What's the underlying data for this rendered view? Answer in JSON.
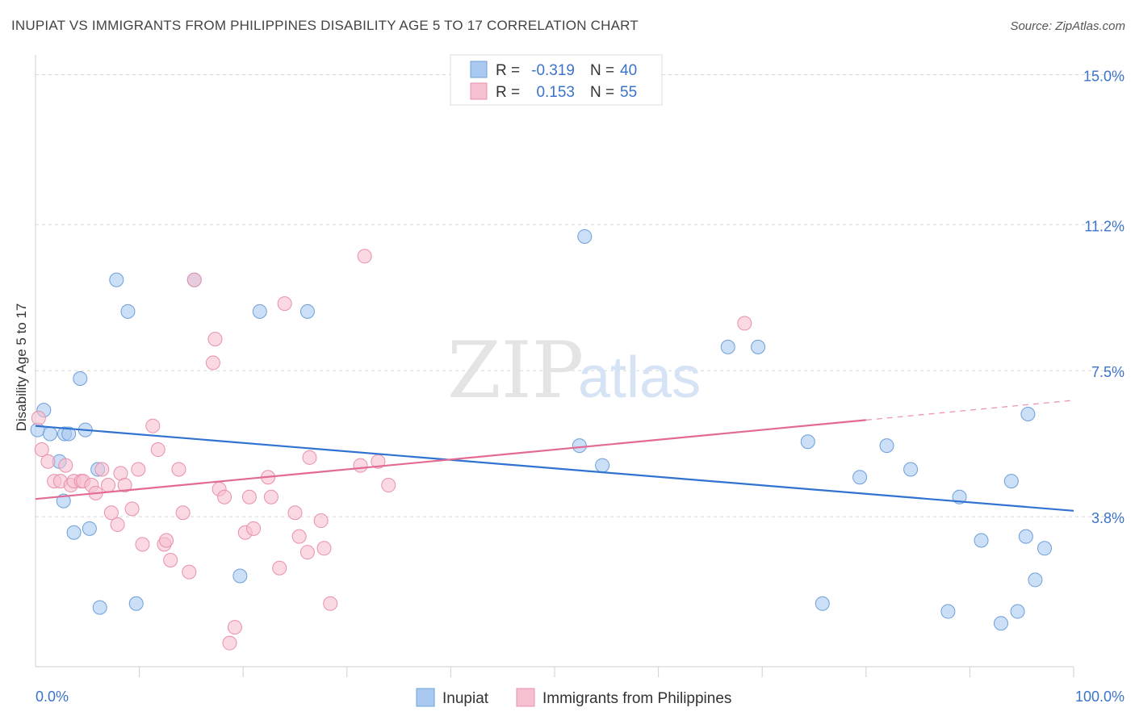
{
  "title": "INUPIAT VS IMMIGRANTS FROM PHILIPPINES DISABILITY AGE 5 TO 17 CORRELATION CHART",
  "source": "Source: ZipAtlas.com",
  "watermark": {
    "zip": "ZIP",
    "atlas": "atlas"
  },
  "legend_stats": [
    {
      "r_label": "R =",
      "r_value": "-0.319",
      "n_label": "N =",
      "n_value": "40",
      "color": "#a9c9f0",
      "stroke": "#6e9fd8"
    },
    {
      "r_label": "R =",
      "r_value": "0.153",
      "n_label": "N =",
      "n_value": "55",
      "color": "#f7c0d0",
      "stroke": "#e890aa"
    }
  ],
  "chart_data": {
    "type": "scatter",
    "ylabel": "Disability Age 5 to 17",
    "xlim": [
      0,
      100
    ],
    "ylim": [
      0,
      15.5
    ],
    "x_tick_labels": [
      "0.0%",
      "100.0%"
    ],
    "y_ticks": [
      3.8,
      7.5,
      11.2,
      15.0
    ],
    "y_tick_labels": [
      "3.8%",
      "7.5%",
      "11.2%",
      "15.0%"
    ],
    "grid": true,
    "legend": [
      "Inupiat",
      "Immigrants from Philippines"
    ],
    "series": [
      {
        "name": "Inupiat",
        "color": "#a9c9f0",
        "stroke": "#6e9fd8",
        "line_color": "#2f72d0",
        "trend": {
          "x": [
            0,
            100
          ],
          "y": [
            6.1,
            3.95
          ]
        },
        "points": [
          [
            0.2,
            6.0
          ],
          [
            0.8,
            6.5
          ],
          [
            1.4,
            5.9
          ],
          [
            2.3,
            5.2
          ],
          [
            2.7,
            4.2
          ],
          [
            2.8,
            5.9
          ],
          [
            3.2,
            5.9
          ],
          [
            3.7,
            3.4
          ],
          [
            4.3,
            7.3
          ],
          [
            4.8,
            6.0
          ],
          [
            5.2,
            3.5
          ],
          [
            6.0,
            5.0
          ],
          [
            6.2,
            1.5
          ],
          [
            7.8,
            9.8
          ],
          [
            8.9,
            9.0
          ],
          [
            9.7,
            1.6
          ],
          [
            15.3,
            9.8
          ],
          [
            21.6,
            9.0
          ],
          [
            19.7,
            2.3
          ],
          [
            26.2,
            9.0
          ],
          [
            52.4,
            5.6
          ],
          [
            54.6,
            5.1
          ],
          [
            52.9,
            10.9
          ],
          [
            66.7,
            8.1
          ],
          [
            69.6,
            8.1
          ],
          [
            74.4,
            5.7
          ],
          [
            75.8,
            1.6
          ],
          [
            79.4,
            4.8
          ],
          [
            82.0,
            5.6
          ],
          [
            84.3,
            5.0
          ],
          [
            87.9,
            1.4
          ],
          [
            89.0,
            4.3
          ],
          [
            91.1,
            3.2
          ],
          [
            93.0,
            1.1
          ],
          [
            94.0,
            4.7
          ],
          [
            94.6,
            1.4
          ],
          [
            95.4,
            3.3
          ],
          [
            95.6,
            6.4
          ],
          [
            96.3,
            2.2
          ],
          [
            97.2,
            3.0
          ]
        ]
      },
      {
        "name": "Immigrants from Philippines",
        "color": "#f7c0d0",
        "stroke": "#e890aa",
        "line_color": "#e26a93",
        "trend": {
          "x": [
            0,
            80
          ],
          "y": [
            4.25,
            6.25
          ]
        },
        "trend_dashed": {
          "x": [
            80,
            100
          ],
          "y": [
            6.25,
            6.75
          ]
        },
        "points": [
          [
            0.3,
            6.3
          ],
          [
            0.6,
            5.5
          ],
          [
            1.2,
            5.2
          ],
          [
            1.8,
            4.7
          ],
          [
            2.4,
            4.7
          ],
          [
            2.9,
            5.1
          ],
          [
            3.4,
            4.6
          ],
          [
            3.7,
            4.7
          ],
          [
            4.4,
            4.7
          ],
          [
            4.6,
            4.7
          ],
          [
            5.4,
            4.6
          ],
          [
            5.8,
            4.4
          ],
          [
            6.4,
            5.0
          ],
          [
            7.0,
            4.6
          ],
          [
            7.3,
            3.9
          ],
          [
            7.9,
            3.6
          ],
          [
            8.2,
            4.9
          ],
          [
            8.6,
            4.6
          ],
          [
            9.3,
            4.0
          ],
          [
            9.9,
            5.0
          ],
          [
            10.3,
            3.1
          ],
          [
            11.3,
            6.1
          ],
          [
            11.8,
            5.5
          ],
          [
            12.4,
            3.1
          ],
          [
            12.6,
            3.2
          ],
          [
            13.0,
            2.7
          ],
          [
            13.8,
            5.0
          ],
          [
            14.2,
            3.9
          ],
          [
            14.8,
            2.4
          ],
          [
            15.3,
            9.8
          ],
          [
            17.1,
            7.7
          ],
          [
            17.3,
            8.3
          ],
          [
            17.7,
            4.5
          ],
          [
            18.2,
            4.3
          ],
          [
            18.7,
            0.6
          ],
          [
            19.2,
            1.0
          ],
          [
            20.2,
            3.4
          ],
          [
            20.6,
            4.3
          ],
          [
            21.0,
            3.5
          ],
          [
            22.4,
            4.8
          ],
          [
            22.7,
            4.3
          ],
          [
            23.5,
            2.5
          ],
          [
            24.0,
            9.2
          ],
          [
            25.0,
            3.9
          ],
          [
            25.4,
            3.3
          ],
          [
            26.2,
            2.9
          ],
          [
            26.4,
            5.3
          ],
          [
            27.5,
            3.7
          ],
          [
            27.8,
            3.0
          ],
          [
            28.4,
            1.6
          ],
          [
            31.3,
            5.1
          ],
          [
            31.7,
            10.4
          ],
          [
            33.0,
            5.2
          ],
          [
            34.0,
            4.6
          ],
          [
            68.3,
            8.7
          ]
        ]
      }
    ]
  }
}
